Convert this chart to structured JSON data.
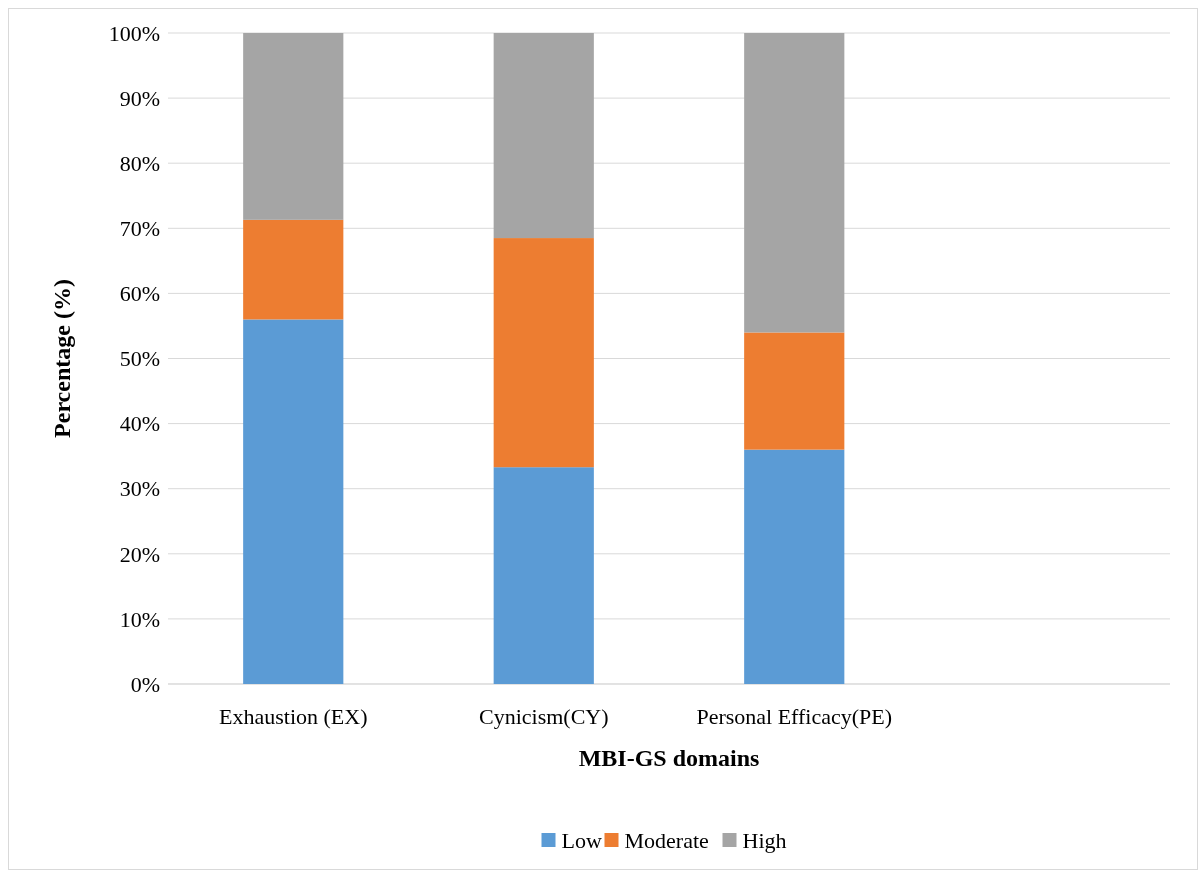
{
  "chart_data": {
    "type": "bar",
    "stacked": true,
    "xlabel": "MBI-GS domains",
    "ylabel": "Percentage (%)",
    "categories": [
      "Exhaustion (EX)",
      "Cynicism(CY)",
      "Personal Efficacy(PE)",
      null
    ],
    "series": [
      {
        "name": "Low",
        "color": "#5b9bd5",
        "values": [
          56,
          33.3,
          36,
          null
        ]
      },
      {
        "name": "Moderate",
        "color": "#ed7d31",
        "values": [
          15.3,
          35.2,
          18,
          null
        ]
      },
      {
        "name": "High",
        "color": "#a5a5a5",
        "values": [
          28.7,
          31.5,
          46,
          null
        ]
      }
    ],
    "ylim": [
      0,
      100
    ],
    "yticks": [
      {
        "value": 0,
        "label": "0%"
      },
      {
        "value": 10,
        "label": "10%"
      },
      {
        "value": 20,
        "label": "20%"
      },
      {
        "value": 30,
        "label": "30%"
      },
      {
        "value": 40,
        "label": "40%"
      },
      {
        "value": 50,
        "label": "50%"
      },
      {
        "value": 60,
        "label": "60%"
      },
      {
        "value": 70,
        "label": "70%"
      },
      {
        "value": 80,
        "label": "80%"
      },
      {
        "value": 90,
        "label": "90%"
      },
      {
        "value": 100,
        "label": "100%"
      }
    ],
    "grid": "y",
    "legend": "bottom"
  }
}
